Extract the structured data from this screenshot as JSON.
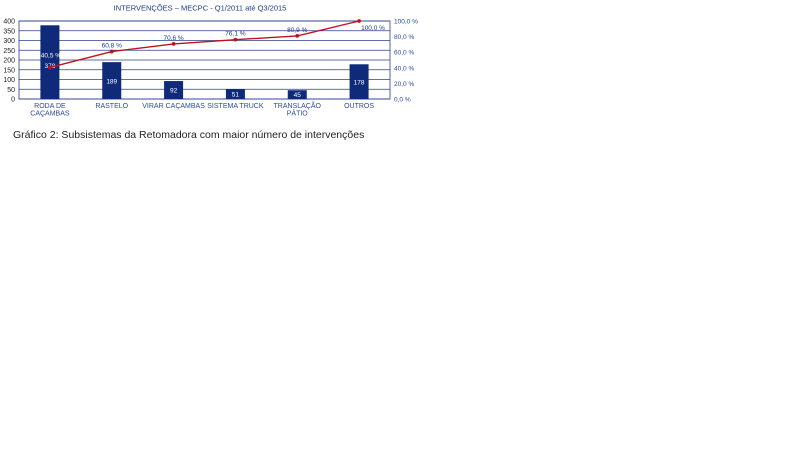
{
  "colors": {
    "bar": "#0e2a78",
    "line": "#c0141a",
    "title": "#1a3a8a",
    "axis_text": "#2a4a9a",
    "grid": "#2a3f8f"
  },
  "chart_data": {
    "type": "bar",
    "title": "INTERVENÇÕES – MECPC - Q1/2011 até Q3/2015",
    "categories": [
      [
        "RODA DE",
        "CAÇAMBAS"
      ],
      [
        "RASTELO"
      ],
      [
        "VIRAR CAÇAMBAS"
      ],
      [
        "SISTEMA TRUCK"
      ],
      [
        "TRANSLAÇÃO",
        "PÁTIO"
      ],
      [
        "OUTROS"
      ]
    ],
    "series": [
      {
        "values": [
          378,
          189,
          92,
          51,
          45,
          178
        ]
      },
      {
        "axis": "right",
        "values": [
          40.5,
          60.8,
          70.6,
          76.1,
          80.9,
          100.0
        ],
        "labels": [
          "40,5 %",
          "60,8 %",
          "70,6 %",
          "76,1 %",
          "80,9 %",
          "100,0 %"
        ]
      }
    ],
    "ylim": [
      0,
      400
    ],
    "yticks": [
      0,
      50,
      100,
      150,
      200,
      250,
      300,
      350,
      400
    ],
    "y2lim": [
      0,
      100
    ],
    "y2ticks": [
      "0,0 %",
      "20,0 %",
      "40,0 %",
      "60,0 %",
      "80,0 %",
      "100,0 %"
    ],
    "grid": true
  },
  "caption": "Gráfico 2: Subsistemas da Retomadora com maior número de intervenções"
}
